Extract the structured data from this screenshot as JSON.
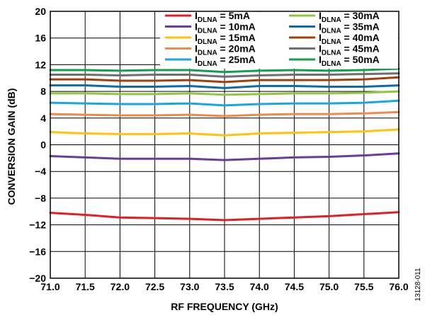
{
  "figure_id": "13128-011",
  "chart_data": {
    "type": "line",
    "xlabel": "RF FREQUENCY (GHz)",
    "ylabel": "CONVERSION GAIN (dB)",
    "xlim": [
      71.0,
      76.0
    ],
    "ylim": [
      -20,
      20
    ],
    "x_ticks": [
      "71.0",
      "71.5",
      "72.0",
      "72.5",
      "73.0",
      "73.5",
      "74.0",
      "74.5",
      "75.0",
      "75.5",
      "76.0"
    ],
    "y_ticks": [
      "20",
      "16",
      "12",
      "8",
      "4",
      "0",
      "−4",
      "−8",
      "−12",
      "−16",
      "−20"
    ],
    "grid": true,
    "legend_position": "top-right",
    "x": [
      71.0,
      71.5,
      72.0,
      72.5,
      73.0,
      73.5,
      74.0,
      74.5,
      75.0,
      75.5,
      76.0
    ],
    "series": [
      {
        "name_main": "I",
        "name_sub": "DLNA",
        "name_rest": " = 5mA",
        "color": "#e41e26",
        "values": [
          -10.2,
          -10.5,
          -10.9,
          -11.0,
          -11.1,
          -11.3,
          -11.1,
          -10.9,
          -10.7,
          -10.4,
          -10.1
        ]
      },
      {
        "name_main": "I",
        "name_sub": "DLNA",
        "name_rest": " = 10mA",
        "color": "#6a3d9a",
        "values": [
          -1.7,
          -1.9,
          -2.1,
          -2.1,
          -2.1,
          -2.3,
          -2.1,
          -1.9,
          -1.8,
          -1.6,
          -1.3
        ]
      },
      {
        "name_main": "I",
        "name_sub": "DLNA",
        "name_rest": " = 15mA",
        "color": "#ffc20e",
        "values": [
          1.9,
          1.7,
          1.6,
          1.6,
          1.7,
          1.4,
          1.7,
          1.8,
          1.9,
          2.0,
          2.3
        ]
      },
      {
        "name_main": "I",
        "name_sub": "DLNA",
        "name_rest": " = 20mA",
        "color": "#ef8a4c",
        "values": [
          4.6,
          4.5,
          4.4,
          4.4,
          4.5,
          4.3,
          4.5,
          4.6,
          4.6,
          4.7,
          4.9
        ]
      },
      {
        "name_main": "I",
        "name_sub": "DLNA",
        "name_rest": " = 25mA",
        "color": "#1ba6e0",
        "values": [
          6.3,
          6.2,
          6.1,
          6.1,
          6.2,
          5.9,
          6.1,
          6.2,
          6.2,
          6.3,
          6.6
        ]
      },
      {
        "name_main": "I",
        "name_sub": "DLNA",
        "name_rest": " = 30mA",
        "color": "#8dc63f",
        "values": [
          7.7,
          7.7,
          7.6,
          7.6,
          7.7,
          7.5,
          7.6,
          7.7,
          7.7,
          7.8,
          8.0
        ]
      },
      {
        "name_main": "I",
        "name_sub": "DLNA",
        "name_rest": " = 35mA",
        "color": "#0f6aa8",
        "values": [
          8.9,
          8.9,
          8.7,
          8.7,
          8.8,
          8.5,
          8.8,
          8.8,
          8.7,
          8.7,
          8.9
        ]
      },
      {
        "name_main": "I",
        "name_sub": "DLNA",
        "name_rest": " = 40mA",
        "color": "#a0410d",
        "values": [
          9.8,
          9.8,
          9.6,
          9.6,
          9.7,
          9.4,
          9.7,
          9.7,
          9.7,
          9.8,
          10.1
        ]
      },
      {
        "name_main": "I",
        "name_sub": "DLNA",
        "name_rest": " = 45mA",
        "color": "#6d6e70",
        "values": [
          10.5,
          10.5,
          10.4,
          10.5,
          10.5,
          10.2,
          10.4,
          10.5,
          10.5,
          10.6,
          10.7
        ]
      },
      {
        "name_main": "I",
        "name_sub": "DLNA",
        "name_rest": " = 50mA",
        "color": "#12a04b",
        "values": [
          11.2,
          11.2,
          11.1,
          11.2,
          11.2,
          10.9,
          11.1,
          11.2,
          11.1,
          11.2,
          11.4
        ]
      }
    ]
  }
}
